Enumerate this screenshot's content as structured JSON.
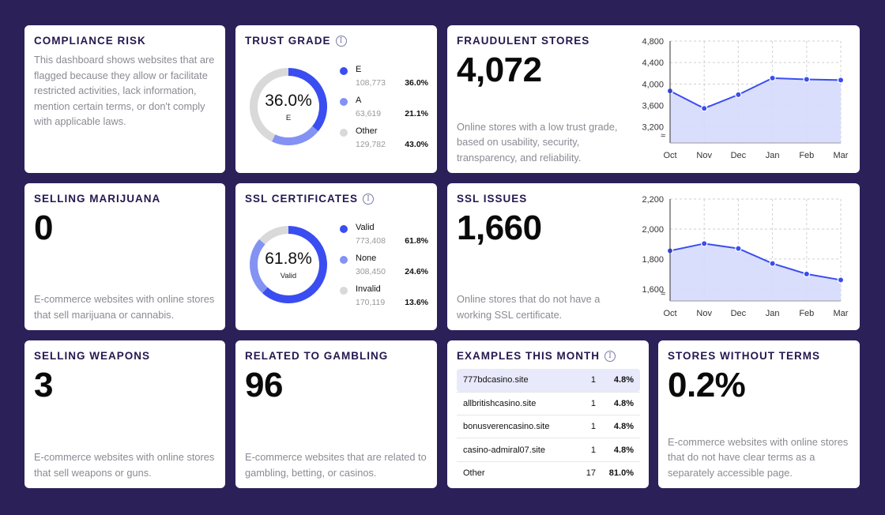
{
  "colors": {
    "background": "#2c2059",
    "primary": "#3a4df0",
    "secondary": "#8392f3",
    "neutral": "#d9d9d9",
    "area_fill": "#d6dafd"
  },
  "compliance": {
    "title": "COMPLIANCE RISK",
    "description": "This dashboard shows websites that are flagged because they allow or facilitate restricted activities, lack information, mention certain terms, or don't comply with applicable laws."
  },
  "trust": {
    "title": "TRUST GRADE",
    "info_icon": "info-icon",
    "center_value": "36.0%",
    "center_label": "E",
    "items": [
      {
        "name": "E",
        "count": "108,773",
        "pct": "36.0%",
        "value": 36.0,
        "color": "#3a4df0"
      },
      {
        "name": "A",
        "count": "63,619",
        "pct": "21.1%",
        "value": 21.1,
        "color": "#8392f3"
      },
      {
        "name": "Other",
        "count": "129,782",
        "pct": "43.0%",
        "value": 43.0,
        "color": "#d9d9d9"
      }
    ]
  },
  "ssl_certs": {
    "title": "SSL CERTIFICATES",
    "info_icon": "info-icon",
    "center_value": "61.8%",
    "center_label": "Valid",
    "items": [
      {
        "name": "Valid",
        "count": "773,408",
        "pct": "61.8%",
        "value": 61.8,
        "color": "#3a4df0"
      },
      {
        "name": "None",
        "count": "308,450",
        "pct": "24.6%",
        "value": 24.6,
        "color": "#8392f3"
      },
      {
        "name": "Invalid",
        "count": "170,119",
        "pct": "13.6%",
        "value": 13.6,
        "color": "#d9d9d9"
      }
    ]
  },
  "fraud": {
    "title": "FRAUDULENT STORES",
    "value": "4,072",
    "description": "Online stores with a low trust grade, based on usability, security, transparency, and reliability."
  },
  "ssl_issues": {
    "title": "SSL ISSUES",
    "value": "1,660",
    "description": "Online stores that do not have a working SSL certificate."
  },
  "marijuana": {
    "title": "SELLING MARIJUANA",
    "value": "0",
    "description": "E-commerce websites with online stores that sell marijuana or cannabis."
  },
  "weapons": {
    "title": "SELLING WEAPONS",
    "value": "3",
    "description": "E-commerce websites with online stores that sell weapons or guns."
  },
  "gambling": {
    "title": "RELATED TO GAMBLING",
    "value": "96",
    "description": "E-commerce websites that are related to gambling, betting, or casinos."
  },
  "examples": {
    "title": "EXAMPLES THIS MONTH",
    "info_icon": "info-icon",
    "rows": [
      {
        "site": "777bdcasino.site",
        "count": "1",
        "pct": "4.8%"
      },
      {
        "site": "allbritishcasino.site",
        "count": "1",
        "pct": "4.8%"
      },
      {
        "site": "bonusverencasino.site",
        "count": "1",
        "pct": "4.8%"
      },
      {
        "site": "casino-admiral07.site",
        "count": "1",
        "pct": "4.8%"
      },
      {
        "site": "Other",
        "count": "17",
        "pct": "81.0%"
      }
    ]
  },
  "terms": {
    "title": "STORES WITHOUT TERMS",
    "value": "0.2%",
    "description": "E-commerce websites with online stores that do not have clear terms as a separately accessible page."
  },
  "chart_data": [
    {
      "type": "area",
      "title": "Fraudulent stores",
      "categories": [
        "Oct",
        "Nov",
        "Dec",
        "Jan",
        "Feb",
        "Mar"
      ],
      "values": [
        3870,
        3545,
        3800,
        4110,
        4085,
        4072
      ],
      "yticks": [
        3200,
        3600,
        4000,
        4400,
        4800
      ],
      "ytick_labels": [
        "3,200",
        "3,600",
        "4,000",
        "4,400",
        "4,800"
      ],
      "ylim": [
        2900,
        4800
      ],
      "axis_break": "≈",
      "grid": true
    },
    {
      "type": "area",
      "title": "SSL issues",
      "categories": [
        "Oct",
        "Nov",
        "Dec",
        "Jan",
        "Feb",
        "Mar"
      ],
      "values": [
        1855,
        1903,
        1870,
        1770,
        1700,
        1660
      ],
      "yticks": [
        1600,
        1800,
        2000,
        2200
      ],
      "ytick_labels": [
        "1,600",
        "1,800",
        "2,000",
        "2,200"
      ],
      "ylim": [
        1520,
        2200
      ],
      "axis_break": "≈",
      "grid": true
    }
  ]
}
